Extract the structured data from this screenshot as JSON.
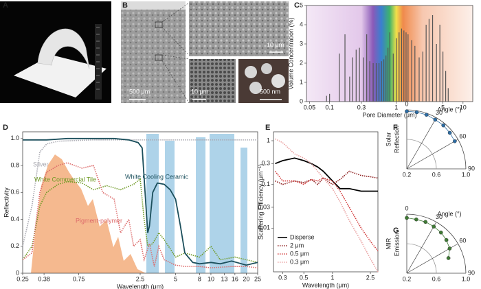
{
  "photos": [
    {
      "panel": "A"
    },
    {
      "panel": "B",
      "scale_bars": [
        "500 μm",
        "10 μm",
        "10 μm",
        "500 nm"
      ]
    }
  ],
  "chart_data": [
    {
      "panel": "C",
      "type": "bar",
      "xscale": "log",
      "color": "#555555",
      "x": [
        0.09,
        0.1,
        0.14,
        0.17,
        0.2,
        0.22,
        0.25,
        0.28,
        0.32,
        0.36,
        0.4,
        0.45,
        0.5,
        0.55,
        0.6,
        0.65,
        0.7,
        0.75,
        0.8,
        0.9,
        1.0,
        1.1,
        1.2,
        1.3,
        1.4,
        1.5,
        1.7,
        1.9,
        2.2,
        2.5,
        2.8,
        3.1,
        3.5,
        4.0,
        4.5,
        5.0,
        5.5,
        6.0
      ],
      "values": [
        0.3,
        0.4,
        2.5,
        3.5,
        1.3,
        2.3,
        2.7,
        2.8,
        2.3,
        3.5,
        2.1,
        2.0,
        2.0,
        2.0,
        2.1,
        2.2,
        2.4,
        2.8,
        3.6,
        2.5,
        3.3,
        3.6,
        3.8,
        3.7,
        3.6,
        3.5,
        3.2,
        2.9,
        2.3,
        2.6,
        4.0,
        4.3,
        4.5,
        3.0,
        4.0,
        2.6,
        1.6,
        0.7
      ],
      "xlim": [
        0.045,
        14
      ],
      "xticks": [
        0.05,
        0.1,
        0.3,
        1,
        5,
        10
      ],
      "ylim": [
        0,
        5
      ],
      "yticks": [
        0,
        1,
        2,
        3,
        4,
        5
      ],
      "xlabel": "Pore Diameter (μm)",
      "ylabel": "Volume Concentration (%)"
    },
    {
      "panel": "D",
      "type": "line",
      "xscale": "log",
      "xlim": [
        0.25,
        25
      ],
      "xticks": [
        0.25,
        0.38,
        0.75,
        2.5,
        5,
        8,
        10,
        13,
        16,
        20,
        25
      ],
      "ylim": [
        0,
        1.05
      ],
      "yticks": [
        0,
        0.2,
        0.4,
        0.6,
        0.8,
        {
          "value": 1,
          "label": "1.0"
        }
      ],
      "xlabel": "Wavelength (μm)",
      "ylabel": "Reflectivity",
      "series": [
        {
          "name": "Silver",
          "color": "#a8a8b0",
          "dashed": true,
          "x": [
            0.25,
            0.3,
            0.35,
            0.4,
            0.5,
            1,
            2,
            5,
            10,
            25
          ],
          "values": [
            0.2,
            0.5,
            0.9,
            0.96,
            0.98,
            0.99,
            0.99,
            0.99,
            0.99,
            0.99
          ]
        },
        {
          "name": "White Commercial Tile",
          "color": "#6f9a25",
          "dashed": true,
          "x": [
            0.25,
            0.3,
            0.35,
            0.4,
            0.5,
            0.6,
            0.8,
            1,
            1.3,
            1.7,
            2.2,
            2.5,
            2.7,
            2.9,
            3.2,
            3.6,
            4,
            5,
            6,
            8,
            10,
            12,
            16,
            20,
            25
          ],
          "values": [
            0.1,
            0.2,
            0.5,
            0.6,
            0.66,
            0.68,
            0.67,
            0.62,
            0.65,
            0.62,
            0.66,
            0.7,
            0.4,
            0.2,
            0.22,
            0.3,
            0.25,
            0.12,
            0.15,
            0.12,
            0.2,
            0.1,
            0.12,
            0.1,
            0.08
          ]
        },
        {
          "name": "Pigment-polymer",
          "color": "#dd6b6b",
          "dashed": true,
          "x": [
            0.25,
            0.3,
            0.35,
            0.4,
            0.5,
            0.6,
            0.8,
            1,
            1.2,
            1.5,
            1.7,
            2,
            2.2,
            2.5,
            2.7,
            3,
            3.3,
            3.6,
            4,
            5,
            6,
            8,
            10,
            15,
            20,
            25
          ],
          "values": [
            0.1,
            0.15,
            0.6,
            0.75,
            0.8,
            0.82,
            0.78,
            0.8,
            0.6,
            0.55,
            0.3,
            0.4,
            0.2,
            0.25,
            0.1,
            0.22,
            0.05,
            0.2,
            0.1,
            0.06,
            0.05,
            0.05,
            0.04,
            0.05,
            0.05,
            0.04
          ]
        },
        {
          "name": "White Cooling Ceramic",
          "color": "#1b4f5c",
          "dashed": false,
          "x": [
            0.25,
            0.3,
            0.4,
            0.6,
            1,
            1.5,
            2,
            2.4,
            2.6,
            2.8,
            2.9,
            3.0,
            3.2,
            3.5,
            4,
            4.5,
            5,
            5.5,
            6,
            7,
            8,
            10,
            12,
            15,
            20,
            25
          ],
          "values": [
            0.99,
            0.99,
            0.99,
            1.0,
            1.0,
            1.0,
            0.99,
            0.97,
            0.93,
            0.5,
            0.3,
            0.35,
            0.6,
            0.67,
            0.66,
            0.62,
            0.55,
            0.35,
            0.15,
            0.08,
            0.07,
            0.08,
            0.07,
            0.09,
            0.06,
            0.08
          ]
        }
      ]
    },
    {
      "panel": "E",
      "type": "line",
      "xscale": "log",
      "yscale": "log",
      "legend": "lower-left",
      "xlim": [
        0.24,
        3
      ],
      "xticks": [
        0.3,
        0.5,
        1,
        2.5
      ],
      "ylim": [
        0.001,
        1.6
      ],
      "yticks": [
        0.01,
        0.03,
        0.1,
        0.3,
        1
      ],
      "xlabel": "Wavelength (μm)",
      "ylabel": "Scattering Efficiency (μm⁻¹)",
      "series": [
        {
          "name": "Disperse",
          "color": "#000000",
          "dashed": false,
          "x": [
            0.25,
            0.3,
            0.4,
            0.5,
            0.6,
            0.7,
            0.8,
            1,
            1.2,
            1.5,
            2,
            2.5,
            3
          ],
          "values": [
            0.3,
            0.35,
            0.4,
            0.35,
            0.3,
            0.25,
            0.2,
            0.12,
            0.08,
            0.08,
            0.07,
            0.07,
            0.07
          ]
        },
        {
          "name": "2 μm",
          "color": "#8b1a1a",
          "dashed": true,
          "x": [
            0.25,
            0.3,
            0.4,
            0.5,
            0.6,
            0.7,
            0.8,
            1,
            1.2,
            1.5,
            2,
            2.5,
            3
          ],
          "values": [
            0.12,
            0.1,
            0.12,
            0.11,
            0.13,
            0.1,
            0.14,
            0.1,
            0.13,
            0.2,
            0.16,
            0.15,
            0.14
          ]
        },
        {
          "name": "0.5 μm",
          "color": "#d23c3c",
          "dashed": true,
          "x": [
            0.25,
            0.3,
            0.4,
            0.5,
            0.6,
            0.7,
            0.8,
            1,
            1.2,
            1.5,
            2,
            2.5,
            3
          ],
          "values": [
            0.2,
            0.12,
            0.12,
            0.1,
            0.13,
            0.12,
            0.14,
            0.12,
            0.07,
            0.03,
            0.01,
            0.005,
            0.003
          ]
        },
        {
          "name": "0.3 μm",
          "color": "#eaa0a0",
          "dashed": true,
          "x": [
            0.25,
            0.3,
            0.4,
            0.5,
            0.6,
            0.7,
            0.8,
            1,
            1.2,
            1.5,
            2,
            2.5,
            3
          ],
          "values": [
            1.1,
            0.9,
            0.5,
            0.4,
            0.3,
            0.2,
            0.14,
            0.08,
            0.04,
            0.015,
            0.005,
            0.002,
            0.001
          ]
        }
      ]
    },
    {
      "panel": "F",
      "type": "polar",
      "angle_label": "Angle (°)",
      "ylabel": [
        "Solar",
        "Reflection"
      ],
      "color": "#2e6da4",
      "theta": [
        0,
        10,
        20,
        30,
        40,
        50,
        60
      ],
      "values": [
        0.98,
        0.98,
        0.98,
        0.97,
        0.97,
        0.96,
        0.95
      ],
      "thetalim": [
        0,
        90
      ],
      "thetaticks": [
        0,
        30,
        60,
        90
      ],
      "rlim": [
        0.2,
        1
      ],
      "rticks": [
        0.2,
        0.6,
        {
          "value": 1,
          "label": "1.0"
        }
      ]
    },
    {
      "panel": "G",
      "type": "polar",
      "angle_label": "Angle (°)",
      "ylabel": [
        "MIR",
        "Emission"
      ],
      "color": "#3f7a35",
      "theta": [
        0,
        10,
        20,
        30,
        40,
        50,
        60,
        70
      ],
      "values": [
        0.95,
        0.94,
        0.94,
        0.93,
        0.92,
        0.9,
        0.87,
        0.8
      ],
      "thetalim": [
        0,
        90
      ],
      "thetaticks": [
        0,
        30,
        60,
        90
      ],
      "rlim": [
        0.2,
        1
      ],
      "rticks": [
        0.2,
        0.6,
        {
          "value": 1,
          "label": "1.0"
        }
      ]
    }
  ]
}
